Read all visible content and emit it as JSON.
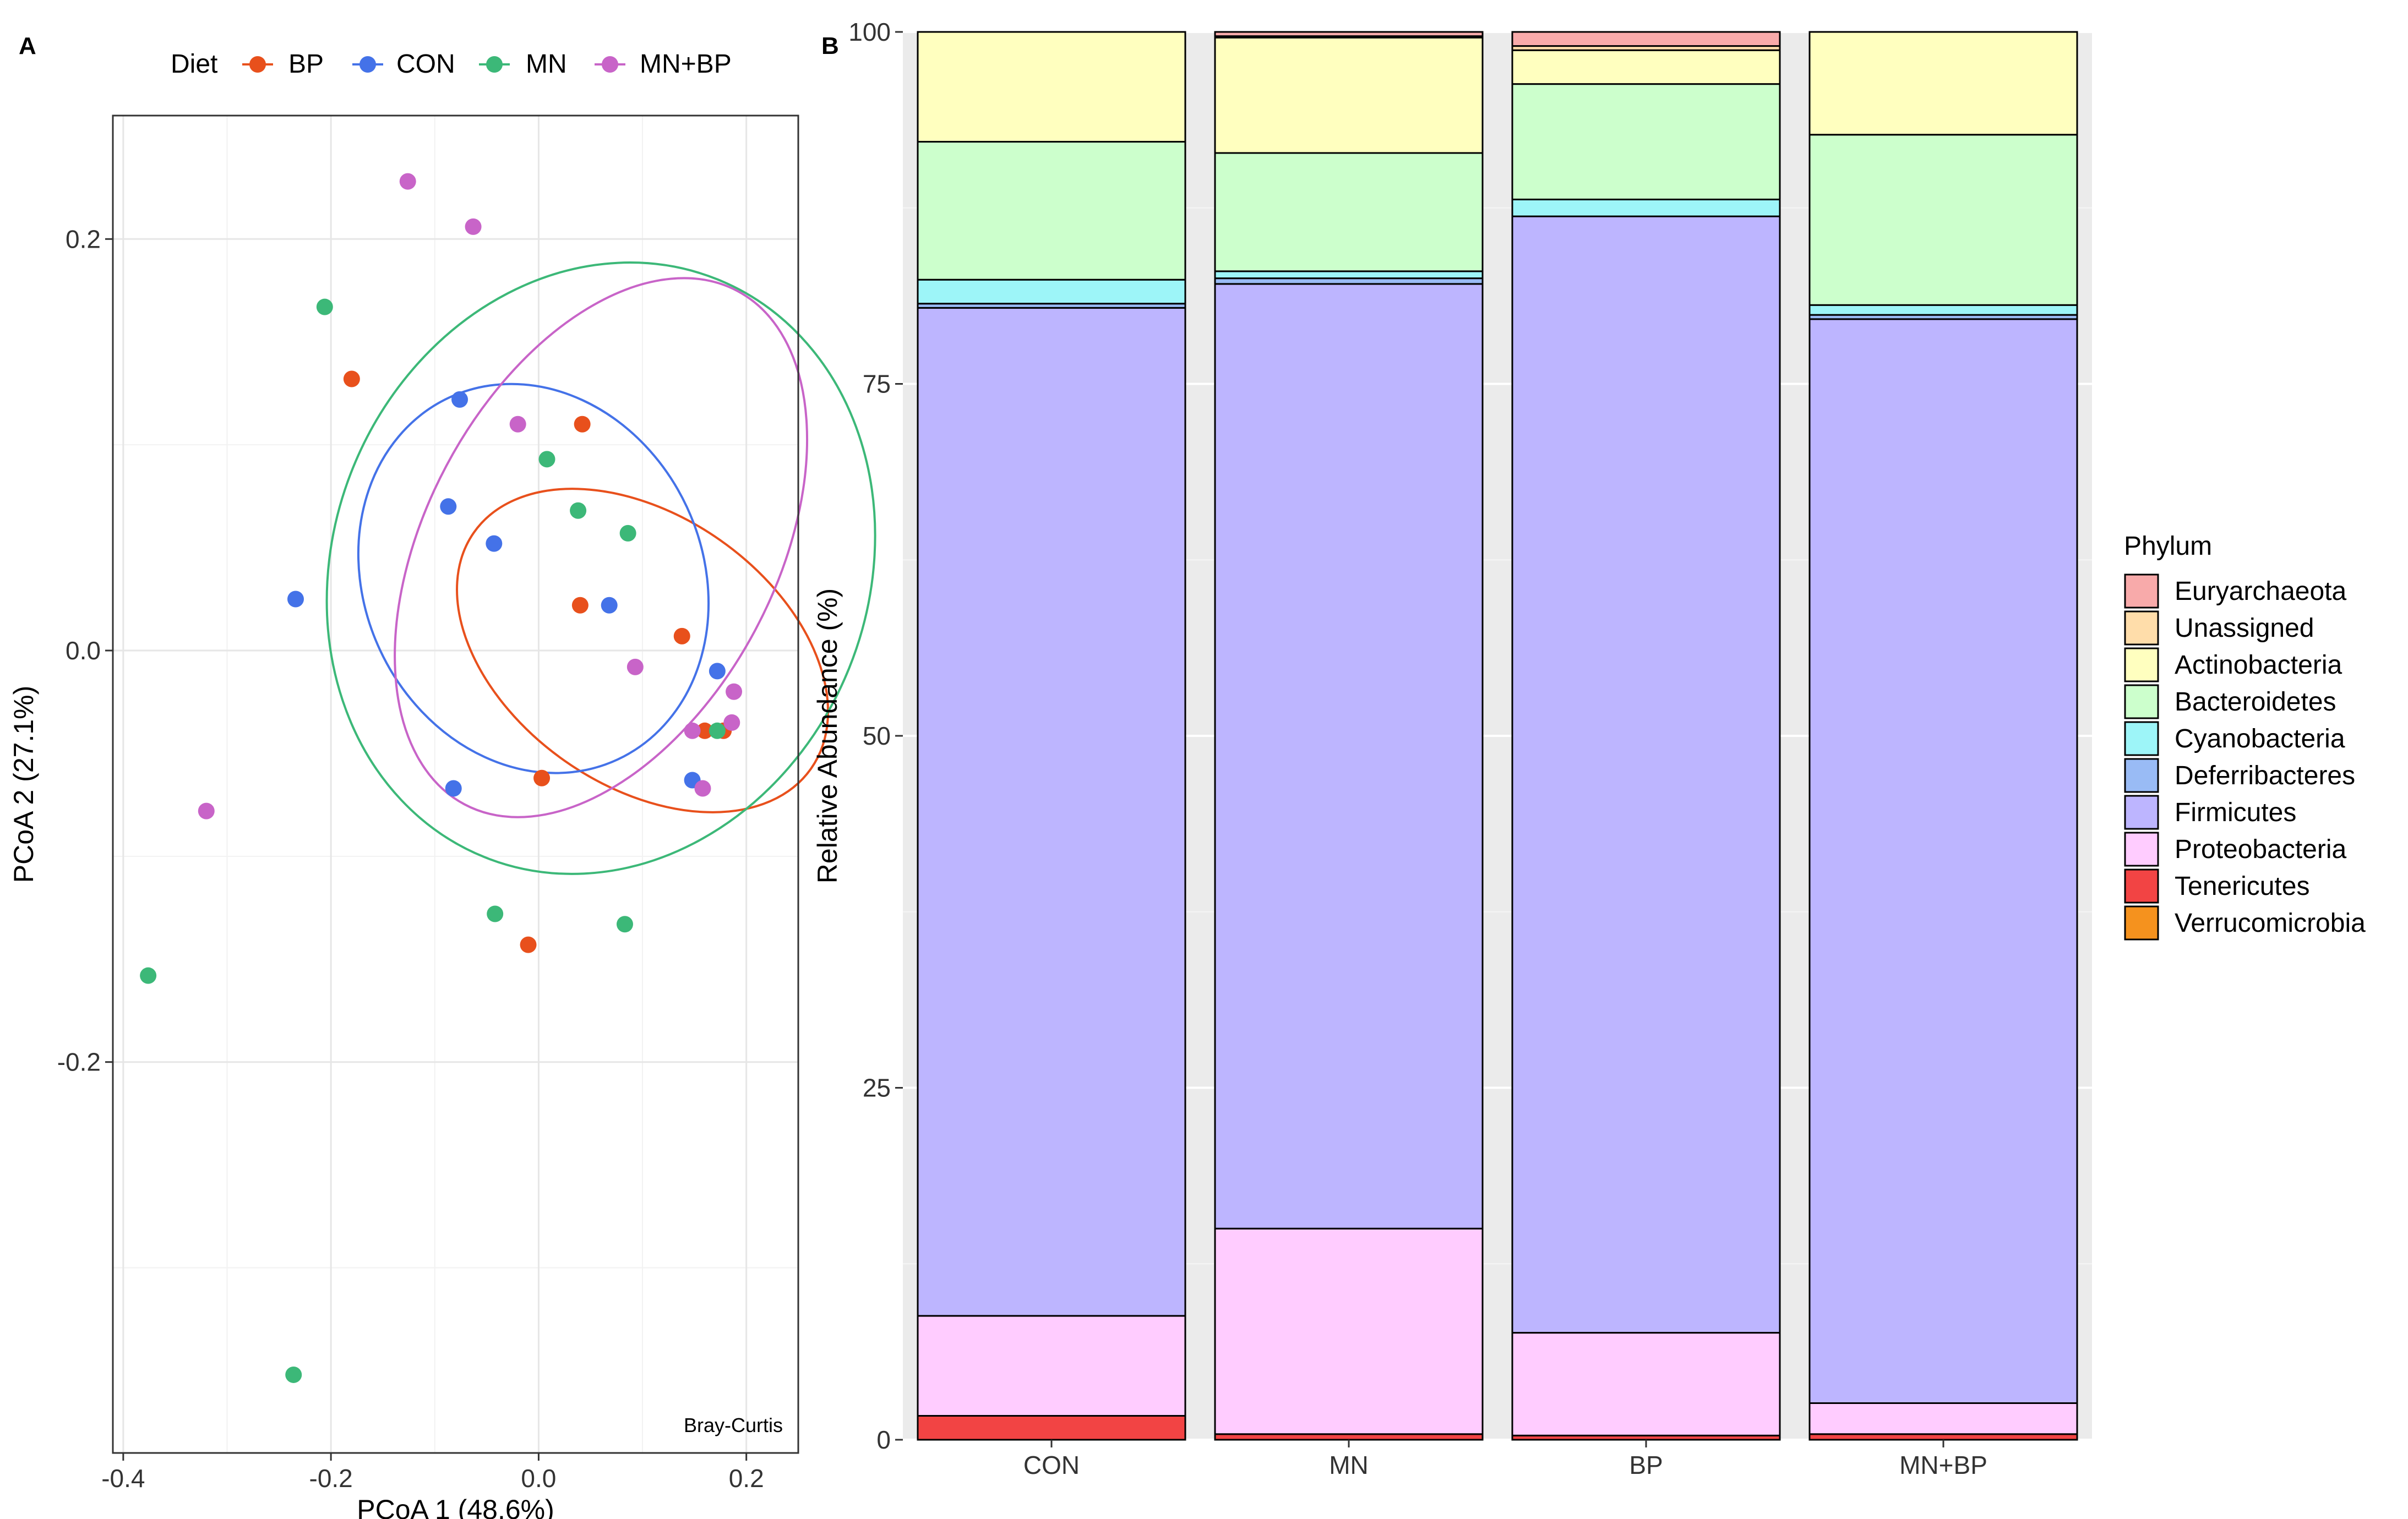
{
  "panels": {
    "a": "A",
    "b": "B"
  },
  "chart_data": [
    {
      "type": "scatter",
      "xlabel": "PCoA 1 (48.6%)",
      "ylabel": "PCoA 2 (27.1%)",
      "xlim": [
        -0.41,
        0.25
      ],
      "ylim": [
        -0.39,
        0.26
      ],
      "xticks": [
        -0.4,
        -0.2,
        0.0,
        0.2
      ],
      "xtick_labels": [
        "-0.4",
        "-0.2",
        "0.0",
        "0.2"
      ],
      "yticks": [
        -0.2,
        0.0,
        0.2
      ],
      "ytick_labels": [
        "-0.2",
        "0.0",
        "0.2"
      ],
      "grid": true,
      "legend": {
        "title": "Diet",
        "placement": "top",
        "entries": [
          "BP",
          "CON",
          "MN",
          "MN+BP"
        ]
      },
      "annotation": "Bray-Curtis",
      "series": [
        {
          "name": "BP",
          "color": "#E8501C",
          "points": [
            [
              -0.18,
              0.132
            ],
            [
              0.042,
              0.11
            ],
            [
              0.04,
              0.022
            ],
            [
              0.138,
              0.007
            ],
            [
              0.16,
              -0.039
            ],
            [
              0.178,
              -0.039
            ],
            [
              0.003,
              -0.062
            ],
            [
              -0.01,
              -0.143
            ]
          ],
          "ellipse": {
            "cx": 0.1,
            "cy": 0.0,
            "rx": 0.13,
            "ry": 0.1,
            "angle": -55
          }
        },
        {
          "name": "CON",
          "color": "#4472E8",
          "points": [
            [
              -0.076,
              0.122
            ],
            [
              -0.087,
              0.07
            ],
            [
              -0.043,
              0.052
            ],
            [
              0.068,
              0.022
            ],
            [
              -0.234,
              0.025
            ],
            [
              0.172,
              -0.01
            ],
            [
              -0.082,
              -0.067
            ],
            [
              0.148,
              -0.063
            ]
          ],
          "ellipse": {
            "cx": -0.005,
            "cy": 0.035,
            "rx": 0.163,
            "ry": 0.097,
            "angle": -25
          }
        },
        {
          "name": "MN",
          "color": "#3CB878",
          "points": [
            [
              -0.206,
              0.167
            ],
            [
              0.008,
              0.093
            ],
            [
              0.038,
              0.068
            ],
            [
              0.086,
              0.057
            ],
            [
              0.172,
              -0.039
            ],
            [
              -0.042,
              -0.128
            ],
            [
              0.083,
              -0.133
            ],
            [
              -0.376,
              -0.158
            ],
            [
              -0.236,
              -0.352
            ]
          ],
          "ellipse": {
            "cx": 0.06,
            "cy": 0.04,
            "rx": 0.3,
            "ry": 0.13,
            "angle": -68
          }
        },
        {
          "name": "MN+BP",
          "color": "#C864C8",
          "points": [
            [
              -0.126,
              0.228
            ],
            [
              -0.063,
              0.206
            ],
            [
              -0.02,
              0.11
            ],
            [
              0.093,
              -0.008
            ],
            [
              0.188,
              -0.02
            ],
            [
              0.186,
              -0.035
            ],
            [
              0.148,
              -0.039
            ],
            [
              0.158,
              -0.067
            ],
            [
              -0.32,
              -0.078
            ]
          ],
          "ellipse": {
            "cx": 0.06,
            "cy": 0.05,
            "rx": 0.28,
            "ry": 0.085,
            "angle": -62
          }
        }
      ]
    },
    {
      "type": "bar",
      "stacked": true,
      "ylabel": "Relative Abundance (%)",
      "ylim": [
        0,
        100
      ],
      "yticks": [
        0,
        25,
        50,
        75,
        100
      ],
      "ytick_labels": [
        "0",
        "25",
        "50",
        "75",
        "100"
      ],
      "grid": true,
      "categories": [
        "CON",
        "MN",
        "BP",
        "MN+BP"
      ],
      "legend": {
        "title": "Phylum",
        "placement": "right"
      },
      "series": [
        {
          "name": "Tenericutes",
          "color": "#F24444",
          "values": [
            1.7,
            0.4,
            0.3,
            0.4
          ]
        },
        {
          "name": "Verrucomicrobia",
          "color": "#F5921E",
          "values": [
            0.0,
            0.0,
            0.0,
            0.0
          ]
        },
        {
          "name": "Proteobacteria",
          "color": "#FFCCFF",
          "values": [
            7.1,
            14.6,
            7.3,
            2.2
          ]
        },
        {
          "name": "Firmicutes",
          "color": "#BDB5FF",
          "values": [
            71.6,
            67.1,
            79.3,
            77.0
          ]
        },
        {
          "name": "Deferribacteres",
          "color": "#99BBF5",
          "values": [
            0.3,
            0.4,
            0.0,
            0.3
          ]
        },
        {
          "name": "Cyanobacteria",
          "color": "#9DF5F8",
          "values": [
            1.7,
            0.5,
            1.2,
            0.7
          ]
        },
        {
          "name": "Bacteroidetes",
          "color": "#CCFFCC",
          "values": [
            9.8,
            8.4,
            8.2,
            12.1
          ]
        },
        {
          "name": "Actinobacteria",
          "color": "#FFFFBF",
          "values": [
            7.8,
            8.2,
            2.4,
            7.3
          ]
        },
        {
          "name": "Unassigned",
          "color": "#FFDDAA",
          "values": [
            0.0,
            0.1,
            0.3,
            0.0
          ]
        },
        {
          "name": "Euryarchaeota",
          "color": "#F8AAAA",
          "values": [
            0.0,
            0.3,
            1.0,
            0.0
          ]
        }
      ],
      "legend_order": [
        "Euryarchaeota",
        "Unassigned",
        "Actinobacteria",
        "Bacteroidetes",
        "Cyanobacteria",
        "Deferribacteres",
        "Firmicutes",
        "Proteobacteria",
        "Tenericutes",
        "Verrucomicrobia"
      ]
    }
  ]
}
